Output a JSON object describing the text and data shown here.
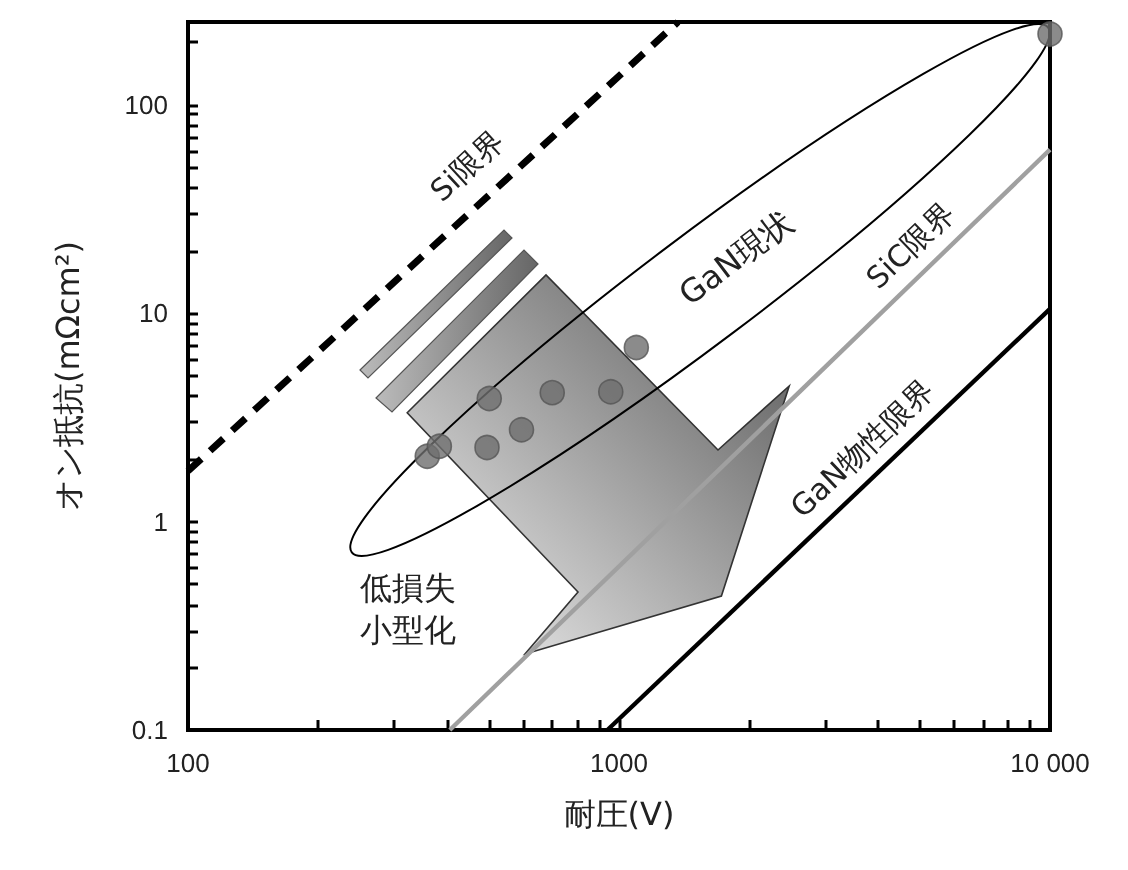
{
  "chart_data": {
    "type": "line",
    "xlabel": "耐圧(V)",
    "ylabel": "オン抵抗(mΩcm²)",
    "log": "xy",
    "grid": false,
    "xlim": [
      100,
      10000
    ],
    "ylim": [
      0.1,
      250
    ],
    "xticks": [
      100,
      {
        "value": 200,
        "label": null
      },
      {
        "value": 300,
        "label": null
      },
      {
        "value": 400,
        "label": null
      },
      {
        "value": 500,
        "label": null
      },
      {
        "value": 600,
        "label": null
      },
      {
        "value": 700,
        "label": null
      },
      {
        "value": 800,
        "label": null
      },
      {
        "value": 900,
        "label": null
      },
      1000,
      {
        "value": 2000,
        "label": null
      },
      {
        "value": 3000,
        "label": null
      },
      {
        "value": 4000,
        "label": null
      },
      {
        "value": 5000,
        "label": null
      },
      {
        "value": 6000,
        "label": null
      },
      {
        "value": 7000,
        "label": null
      },
      {
        "value": 8000,
        "label": null
      },
      {
        "value": 9000,
        "label": null
      },
      {
        "value": 10000,
        "label": "10 000"
      }
    ],
    "yticks": [
      0.1,
      {
        "value": 0.2,
        "label": null
      },
      {
        "value": 0.3,
        "label": null
      },
      {
        "value": 0.4,
        "label": null
      },
      {
        "value": 0.5,
        "label": null
      },
      {
        "value": 0.6,
        "label": null
      },
      {
        "value": 0.7,
        "label": null
      },
      {
        "value": 0.8,
        "label": null
      },
      {
        "value": 0.9,
        "label": null
      },
      1,
      {
        "value": 2,
        "label": null
      },
      {
        "value": 3,
        "label": null
      },
      {
        "value": 4,
        "label": null
      },
      {
        "value": 5,
        "label": null
      },
      {
        "value": 6,
        "label": null
      },
      {
        "value": 7,
        "label": null
      },
      {
        "value": 8,
        "label": null
      },
      {
        "value": 9,
        "label": null
      },
      10,
      {
        "value": 20,
        "label": null
      },
      {
        "value": 30,
        "label": null
      },
      {
        "value": 40,
        "label": null
      },
      {
        "value": 50,
        "label": null
      },
      {
        "value": 60,
        "label": null
      },
      {
        "value": 70,
        "label": null
      },
      {
        "value": 80,
        "label": null
      },
      {
        "value": 90,
        "label": null
      },
      100,
      {
        "value": 200,
        "label": null
      }
    ],
    "series": [
      {
        "name": "Si限界",
        "color": "#000000",
        "line_style": "dashed",
        "marker": "none",
        "x": [
          100,
          1370
        ],
        "values": [
          1.75,
          250
        ]
      },
      {
        "name": "SiC限界",
        "color": "#a0a0a0",
        "line_style": "solid",
        "marker": "none",
        "x": [
          405,
          10000
        ],
        "values": [
          0.1,
          61
        ]
      },
      {
        "name": "GaN物性限界",
        "color": "#000000",
        "line_style": "solid",
        "marker": "none",
        "x": [
          940,
          10000
        ],
        "values": [
          0.1,
          10.5
        ]
      },
      {
        "type": "scatter",
        "color": "#6e6e6e",
        "marker": "circle",
        "x": [
          359,
          383,
          500,
          494,
          594,
          700,
          957,
          1097,
          10000
        ],
        "values": [
          2.06,
          2.3,
          3.9,
          2.27,
          2.76,
          4.16,
          4.2,
          6.85,
          219
        ]
      }
    ],
    "annotations": [
      "GaN現状",
      "低損失",
      "小型化"
    ]
  }
}
